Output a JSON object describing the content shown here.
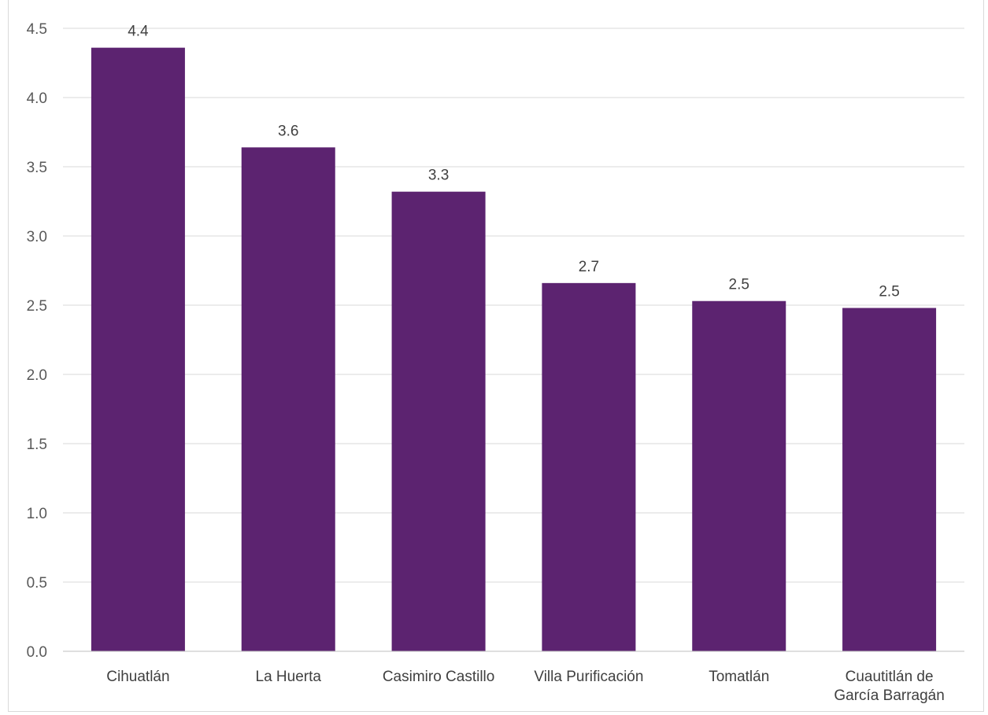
{
  "chart_data": {
    "type": "bar",
    "title": "",
    "xlabel": "",
    "ylabel": "",
    "categories": [
      [
        "Cihuatlán"
      ],
      [
        "La Huerta"
      ],
      [
        "Casimiro Castillo"
      ],
      [
        "Villa Purificación"
      ],
      [
        "Tomatlán"
      ],
      [
        "Cuautitlán de",
        "García Barragán"
      ]
    ],
    "values": [
      4.36,
      3.64,
      3.32,
      2.66,
      2.53,
      2.48
    ],
    "data_labels": [
      "4.4",
      "3.6",
      "3.3",
      "2.7",
      "2.5",
      "2.5"
    ],
    "ylim": [
      0,
      4.5
    ],
    "yticks": [
      "0.0",
      "0.5",
      "1.0",
      "1.5",
      "2.0",
      "2.5",
      "3.0",
      "3.5",
      "4.0",
      "4.5"
    ],
    "grid": true,
    "bar_color": "#5c2370"
  }
}
